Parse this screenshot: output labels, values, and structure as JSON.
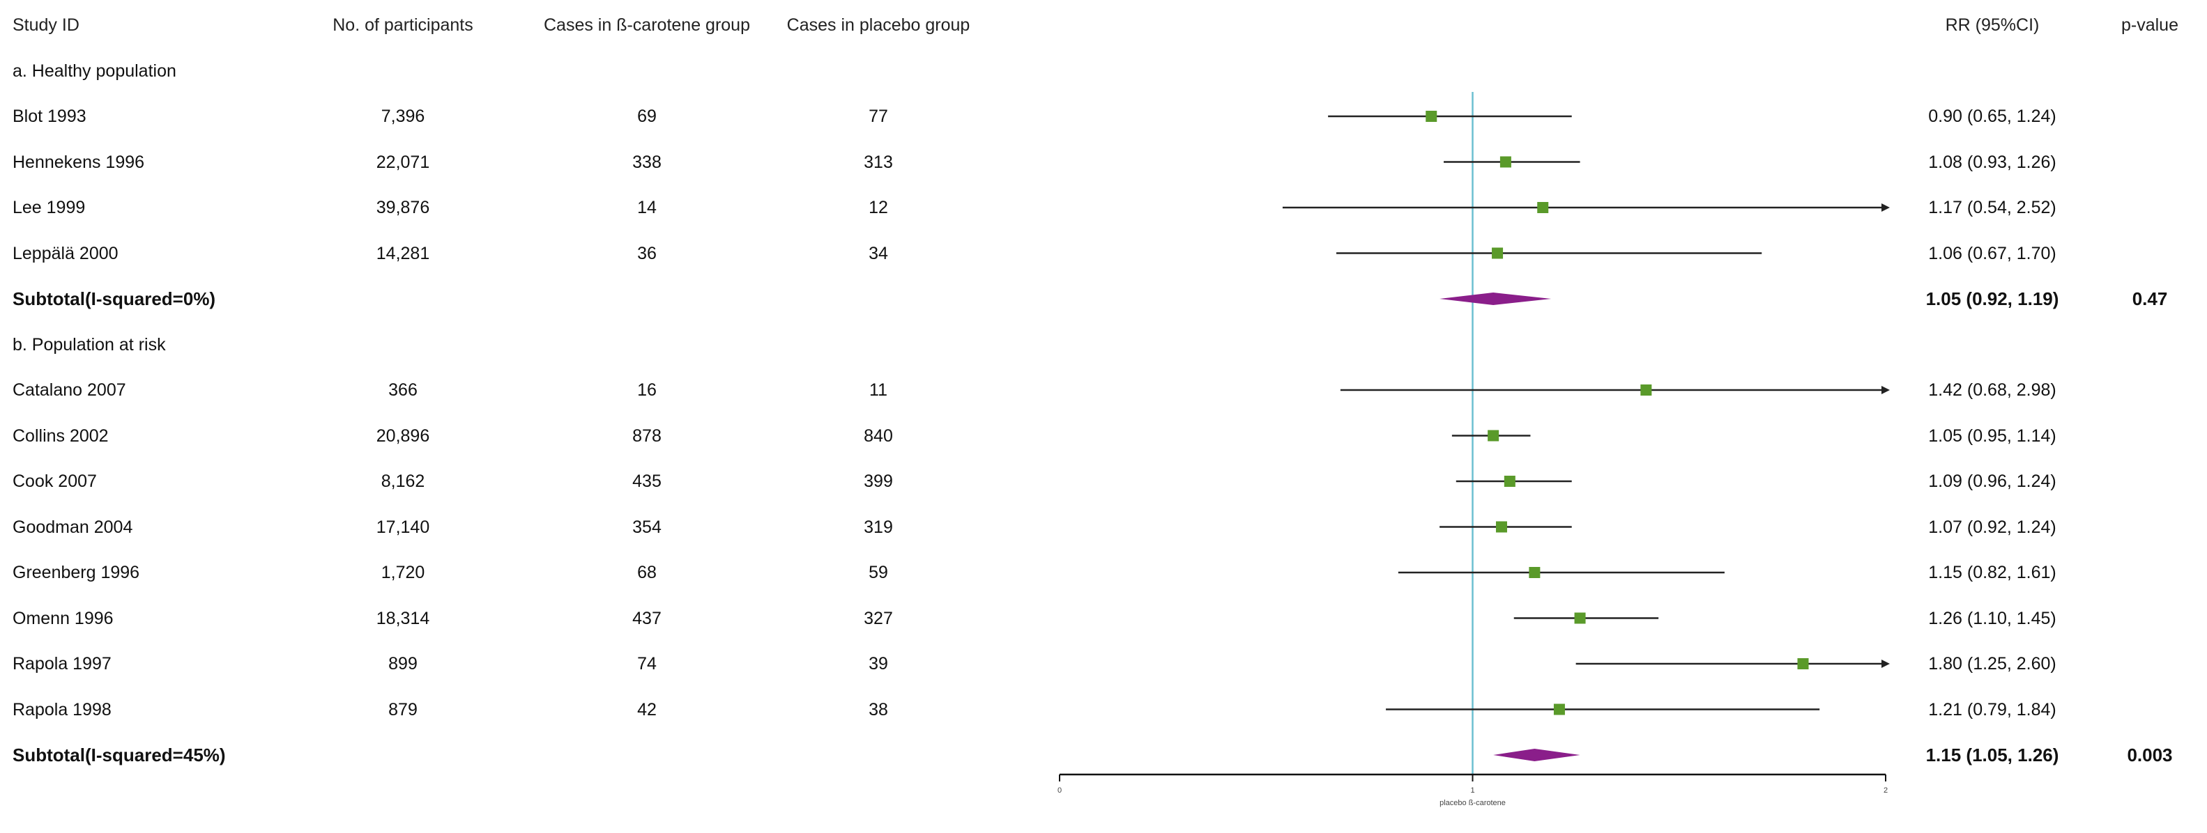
{
  "headers": {
    "study_id": "Study ID",
    "participants": "No. of participants",
    "cases_beta": "Cases in ß-carotene group",
    "cases_placebo": "Cases in placebo group",
    "rr": "RR (95%CI)",
    "pvalue": "p-value"
  },
  "groups": [
    {
      "label": "a. Healthy population",
      "studies": [
        {
          "id": "Blot 1993",
          "n": "7,396",
          "beta": "69",
          "placebo": "77",
          "rr_text": "0.90 (0.65, 1.24)",
          "rr": 0.9,
          "lo": 0.65,
          "hi": 1.24
        },
        {
          "id": "Hennekens 1996",
          "n": "22,071",
          "beta": "338",
          "placebo": "313",
          "rr_text": "1.08 (0.93, 1.26)",
          "rr": 1.08,
          "lo": 0.93,
          "hi": 1.26
        },
        {
          "id": "Lee 1999",
          "n": "39,876",
          "beta": "14",
          "placebo": "12",
          "rr_text": "1.17 (0.54, 2.52)",
          "rr": 1.17,
          "lo": 0.54,
          "hi": 2.52
        },
        {
          "id": "Leppälä 2000",
          "n": "14,281",
          "beta": "36",
          "placebo": "34",
          "rr_text": "1.06 (0.67, 1.70)",
          "rr": 1.06,
          "lo": 0.67,
          "hi": 1.7
        }
      ],
      "subtotal": {
        "label": "Subtotal(I-squared=0%)",
        "rr_text": "1.05 (0.92, 1.19)",
        "pvalue": "0.47",
        "rr": 1.05,
        "lo": 0.92,
        "hi": 1.19
      }
    },
    {
      "label": "b. Population at risk",
      "studies": [
        {
          "id": "Catalano 2007",
          "n": "366",
          "beta": "16",
          "placebo": "11",
          "rr_text": "1.42 (0.68, 2.98)",
          "rr": 1.42,
          "lo": 0.68,
          "hi": 2.98
        },
        {
          "id": "Collins 2002",
          "n": "20,896",
          "beta": "878",
          "placebo": "840",
          "rr_text": "1.05 (0.95, 1.14)",
          "rr": 1.05,
          "lo": 0.95,
          "hi": 1.14
        },
        {
          "id": "Cook 2007",
          "n": "8,162",
          "beta": "435",
          "placebo": "399",
          "rr_text": "1.09 (0.96, 1.24)",
          "rr": 1.09,
          "lo": 0.96,
          "hi": 1.24
        },
        {
          "id": "Goodman 2004",
          "n": "17,140",
          "beta": "354",
          "placebo": "319",
          "rr_text": "1.07 (0.92, 1.24)",
          "rr": 1.07,
          "lo": 0.92,
          "hi": 1.24
        },
        {
          "id": "Greenberg 1996",
          "n": "1,720",
          "beta": "68",
          "placebo": "59",
          "rr_text": "1.15 (0.82, 1.61)",
          "rr": 1.15,
          "lo": 0.82,
          "hi": 1.61
        },
        {
          "id": "Omenn 1996",
          "n": "18,314",
          "beta": "437",
          "placebo": "327",
          "rr_text": "1.26 (1.10, 1.45)",
          "rr": 1.26,
          "lo": 1.1,
          "hi": 1.45
        },
        {
          "id": "Rapola 1997",
          "n": "899",
          "beta": "74",
          "placebo": "39",
          "rr_text": "1.80 (1.25, 2.60)",
          "rr": 1.8,
          "lo": 1.25,
          "hi": 2.6
        },
        {
          "id": "Rapola 1998",
          "n": "879",
          "beta": "42",
          "placebo": "38",
          "rr_text": "1.21 (0.79, 1.84)",
          "rr": 1.21,
          "lo": 0.79,
          "hi": 1.84
        }
      ],
      "subtotal": {
        "label": "Subtotal(I-squared=45%)",
        "rr_text": "1.15 (1.05, 1.26)",
        "pvalue": "0.003",
        "rr": 1.15,
        "lo": 1.05,
        "hi": 1.26
      }
    }
  ],
  "chart_data": {
    "type": "forest",
    "xlim": [
      0,
      2
    ],
    "reference_line": 1,
    "ticks": [
      "0",
      "1",
      "2"
    ],
    "xlabel": "placebo ß-carotene",
    "colors": {
      "point": "#5a9a2a",
      "diamond": "#8a1e8a",
      "refline": "#6bbfd0",
      "ci": "#222222"
    }
  }
}
